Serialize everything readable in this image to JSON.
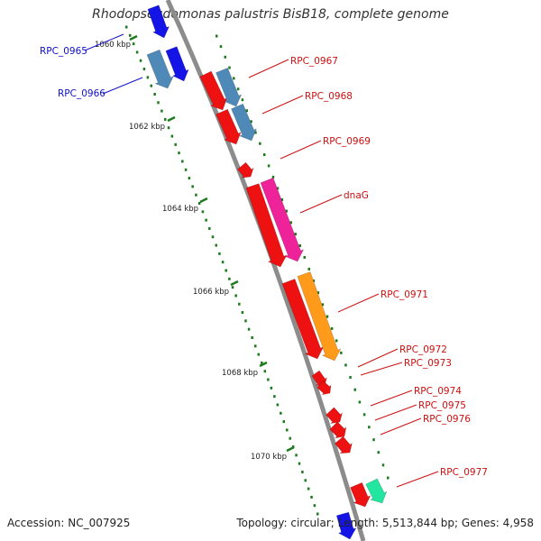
{
  "title": "Rhodopseudomonas palustris BisB18, complete genome",
  "footer": {
    "accession": "Accession: NC_007925",
    "stats": "Topology: circular; Length: 5,513,844 bp; Genes: 4,958"
  },
  "colors": {
    "backbone": "#8c8c8c",
    "ruler_dot": "#1e7a1e",
    "label_blue": "#1010cc",
    "label_red": "#cc1010",
    "gene_blue": "#1414e6",
    "gene_steelblue": "#4f89b8",
    "gene_red": "#ee1111",
    "gene_pink": "#ee2299",
    "gene_orange": "#ff9a1a",
    "gene_teal": "#22e6a0"
  },
  "ruler_labels": [
    "1060 kbp",
    "1062 kbp",
    "1064 kbp",
    "1066 kbp",
    "1068 kbp",
    "1070 kbp"
  ],
  "gene_labels": [
    {
      "text": "RPC_0965",
      "color": "blue"
    },
    {
      "text": "RPC_0966",
      "color": "blue"
    },
    {
      "text": "RPC_0967",
      "color": "red"
    },
    {
      "text": "RPC_0968",
      "color": "red"
    },
    {
      "text": "RPC_0969",
      "color": "red"
    },
    {
      "text": "dnaG",
      "color": "red"
    },
    {
      "text": "RPC_0971",
      "color": "red"
    },
    {
      "text": "RPC_0972",
      "color": "red"
    },
    {
      "text": "RPC_0973",
      "color": "red"
    },
    {
      "text": "RPC_0974",
      "color": "red"
    },
    {
      "text": "RPC_0975",
      "color": "red"
    },
    {
      "text": "RPC_0976",
      "color": "red"
    },
    {
      "text": "RPC_0977",
      "color": "red"
    }
  ]
}
